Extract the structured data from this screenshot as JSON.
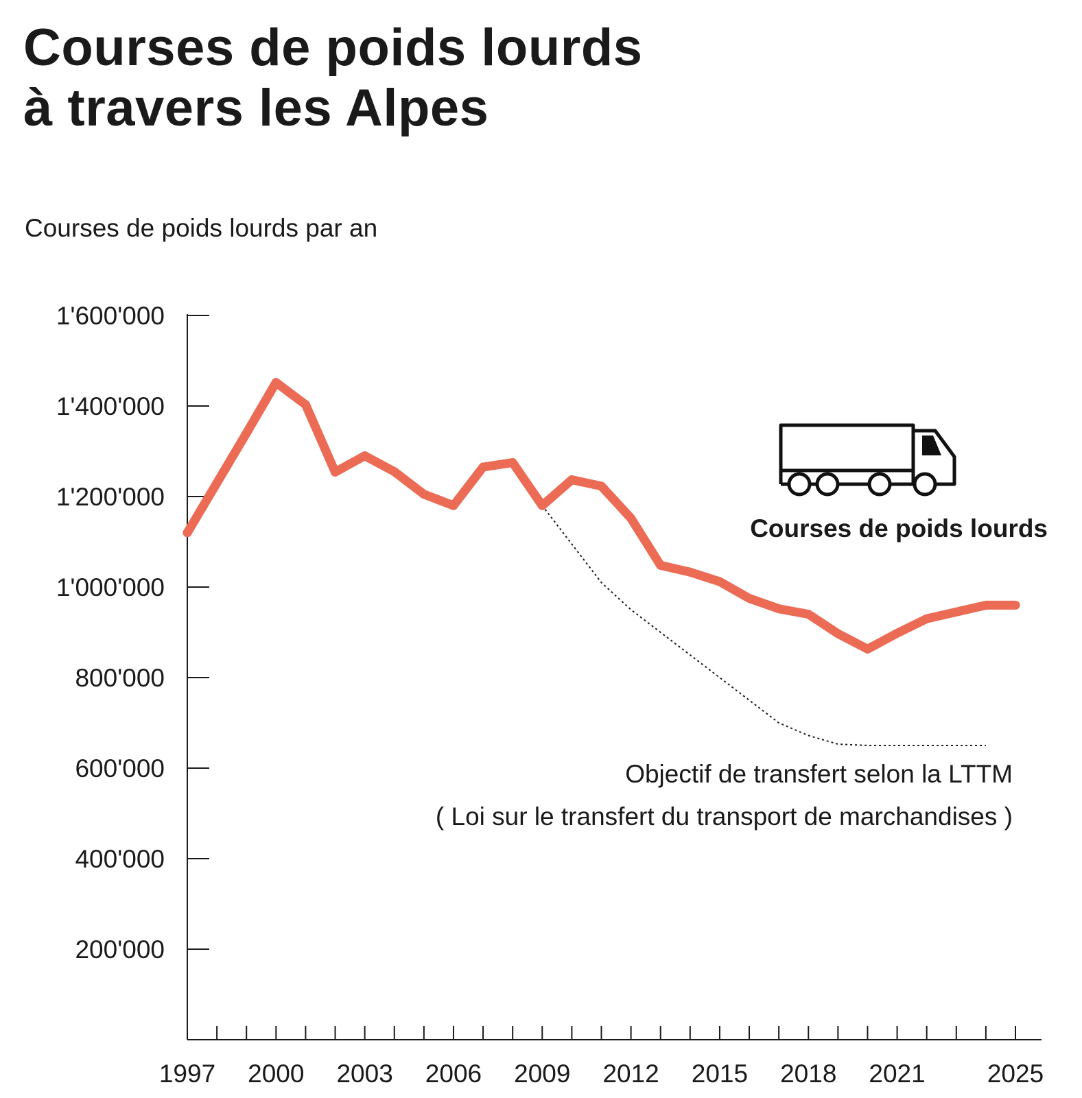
{
  "title": {
    "line1": "Courses de poids lourds",
    "line2": "à travers les Alpes"
  },
  "subtitle": "Courses de poids lourds par an",
  "colors": {
    "series": "#ec6b55",
    "axis": "#1a1a1a",
    "target": "#1a1a1a"
  },
  "icon": "truck-icon",
  "chart_data": {
    "type": "line",
    "ylabel": "Courses de poids lourds par an",
    "ylim": [
      0,
      1600000
    ],
    "yticks": [
      200000,
      400000,
      600000,
      800000,
      1000000,
      1200000,
      1400000,
      1600000
    ],
    "ytick_labels": [
      "200'000",
      "400'000",
      "600'000",
      "800'000",
      "1'000'000",
      "1'200'000",
      "1'400'000",
      "1'600'000"
    ],
    "xlim": [
      1997,
      2025
    ],
    "xticks": [
      1997,
      2000,
      2003,
      2006,
      2009,
      2012,
      2015,
      2018,
      2021,
      2025
    ],
    "xtick_labels": [
      "1997",
      "2000",
      "2003",
      "2006",
      "2009",
      "2012",
      "2015",
      "2018",
      "2021",
      "2025"
    ],
    "grid": false,
    "series": [
      {
        "name": "Courses de poids lourds",
        "style": "solid",
        "x": [
          1997,
          1998,
          1999,
          2000,
          2001,
          2002,
          2003,
          2004,
          2005,
          2006,
          2007,
          2008,
          2009,
          2010,
          2011,
          2012,
          2013,
          2014,
          2015,
          2016,
          2017,
          2018,
          2019,
          2020,
          2021,
          2022,
          2023,
          2024,
          2025
        ],
        "values": [
          1120000,
          1230000,
          1340000,
          1452000,
          1403000,
          1254000,
          1290000,
          1255000,
          1205000,
          1180000,
          1265000,
          1275000,
          1180000,
          1237000,
          1223000,
          1152000,
          1048000,
          1033000,
          1012000,
          975000,
          952000,
          940000,
          897000,
          863000,
          898000,
          930000,
          945000,
          960000,
          960000
        ]
      },
      {
        "name": "Objectif de transfert selon la LTTM",
        "style": "dotted",
        "x": [
          2009,
          2010,
          2011,
          2012,
          2013,
          2014,
          2015,
          2016,
          2017,
          2018,
          2019,
          2020,
          2021,
          2022,
          2023,
          2024
        ],
        "values": [
          1180000,
          1095000,
          1010000,
          950000,
          900000,
          850000,
          800000,
          750000,
          700000,
          672000,
          653000,
          650000,
          650000,
          650000,
          650000,
          650000
        ]
      }
    ],
    "annotations": {
      "series_label": "Courses de poids lourds",
      "target_label_line1": "Objectif de transfert selon la LTTM",
      "target_label_line2": "( Loi sur le transfert du transport de marchandises )"
    }
  }
}
